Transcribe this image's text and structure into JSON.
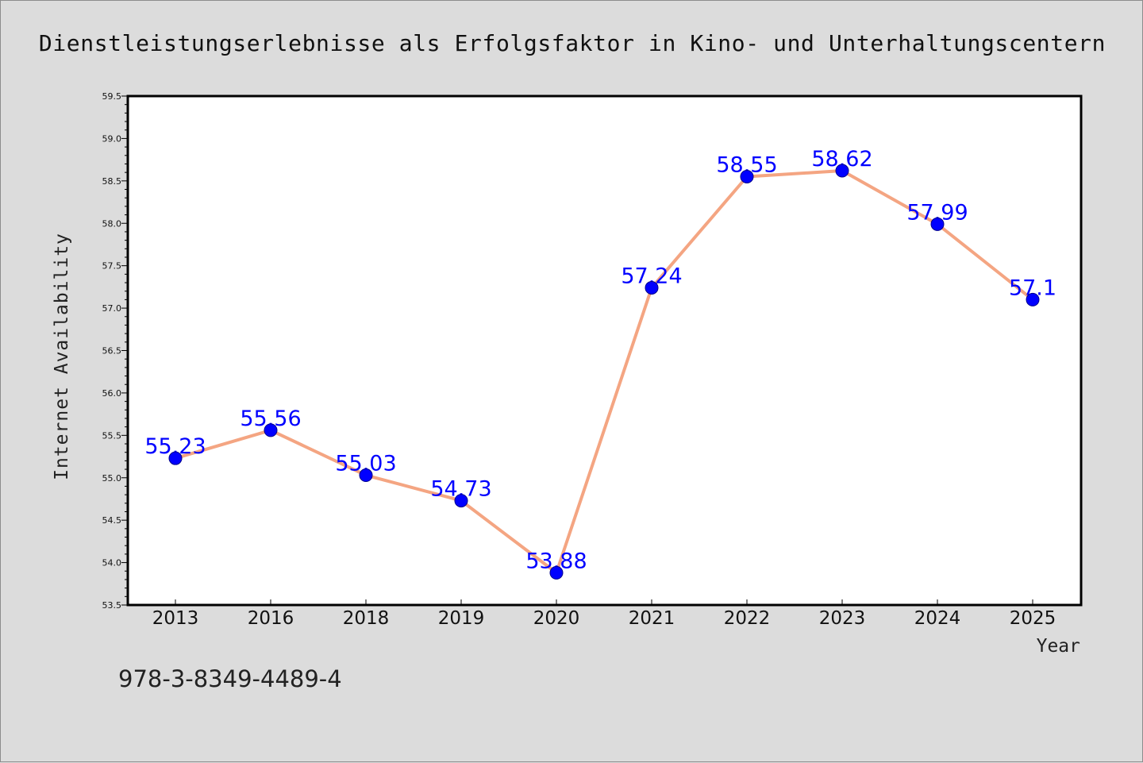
{
  "chart_data": {
    "type": "line",
    "title": "Dienstleistungserlebnisse als Erfolgsfaktor in Kino- und Unterhaltungscentern",
    "xlabel": "Year",
    "ylabel": "Internet Availability",
    "categories": [
      "2013",
      "2016",
      "2018",
      "2019",
      "2020",
      "2021",
      "2022",
      "2023",
      "2024",
      "2025"
    ],
    "series": [
      {
        "values": [
          55.23,
          55.56,
          55.03,
          54.73,
          53.88,
          57.24,
          58.55,
          58.62,
          57.99,
          57.1
        ],
        "labels": [
          "55.23",
          "55.56",
          "55.03",
          "54.73",
          "53.88",
          "57.24",
          "58.55",
          "58.62",
          "57.99",
          "57.1"
        ]
      }
    ],
    "ylim": [
      53.5,
      59.5
    ],
    "yticks": [
      "53.5",
      "54.0",
      "54.5",
      "55.0",
      "55.5",
      "56.0",
      "56.5",
      "57.0",
      "57.5",
      "58.0",
      "58.5",
      "59.0",
      "59.5"
    ],
    "grid": false,
    "legend": "none",
    "colors": {
      "line": "#f4a582",
      "marker": "#0000ff",
      "data_label": "#0000ff",
      "background": "#dcdcdc",
      "plot_background": "#ffffff"
    }
  },
  "footnote": "978-3-8349-4489-4"
}
